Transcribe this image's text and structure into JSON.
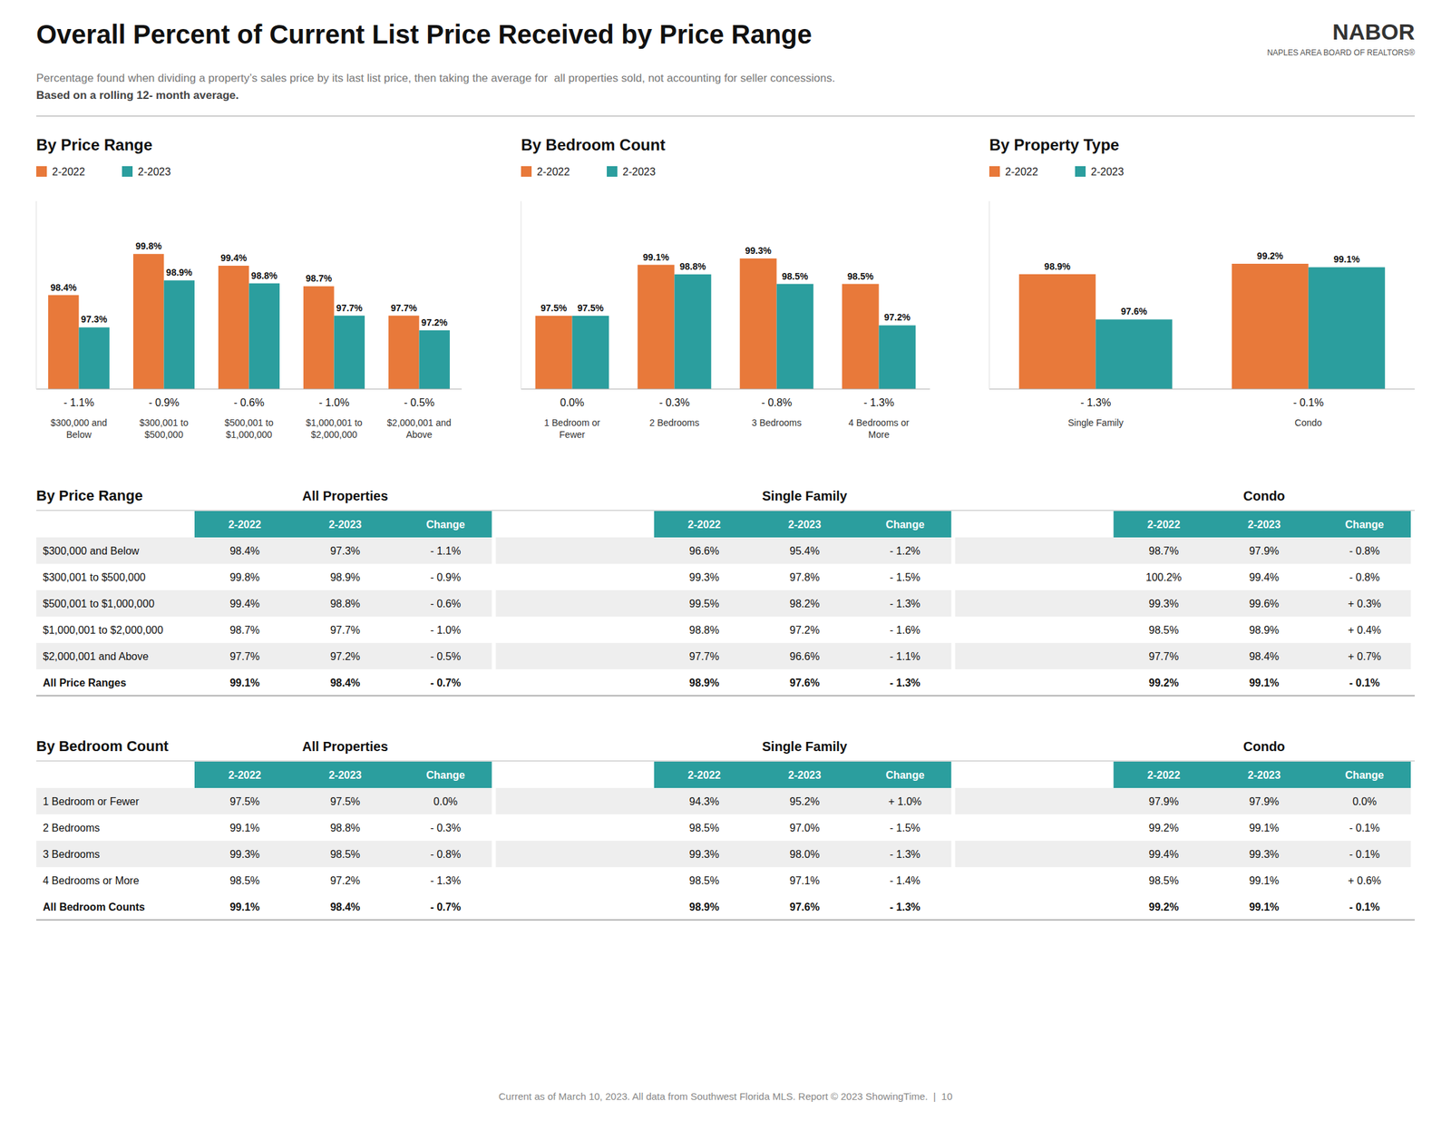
{
  "title": "Overall Percent of Current List Price Received by Price Range",
  "subtitle": [
    "Percentage found when dividing a property’s sales price by its last list price, then taking the average for  all properties sold, not accounting for seller concessions. ",
    "Based on a rolling 12- month average."
  ],
  "annotations": [
    "NABOR",
    "NAPLES AREA BOARD OF REALTORS®"
  ],
  "footer": "Current as of March 10, 2023. All data from Southwest Florida MLS. Report © 2023 ShowingTime.  |  10",
  "chart_data": [
    {
      "type": "bar",
      "title": "By Price Range",
      "categories": [
        "$300,000 and\nBelow",
        "$300,001 to\n$500,000",
        "$500,001 to\n$1,000,000",
        "$1,000,001 to\n$2,000,000",
        "$2,000,001 and\nAbove"
      ],
      "series": [
        {
          "name": "2-2022",
          "color": "#E8793A",
          "values": [
            98.4,
            99.8,
            99.4,
            98.7,
            97.7
          ],
          "value_labels": [
            "98.4%",
            "99.8%",
            "99.4%",
            "98.7%",
            "97.7%"
          ]
        },
        {
          "name": "2-2023",
          "color": "#2B9E9E",
          "values": [
            97.3,
            98.9,
            98.8,
            97.7,
            97.2
          ],
          "value_labels": [
            "97.3%",
            "98.9%",
            "98.8%",
            "97.7%",
            "97.2%"
          ]
        }
      ],
      "annotations": [
        "- 1.1%",
        "- 0.9%",
        "- 0.6%",
        "- 1.0%",
        "- 0.5%"
      ],
      "ylim": [
        95.2,
        101.6
      ],
      "data_labels": true,
      "tick_labels": "x",
      "grid": false,
      "legend": "top"
    },
    {
      "type": "bar",
      "title": "By Bedroom Count",
      "categories": [
        "1 Bedroom or\nFewer",
        "2 Bedrooms",
        "3 Bedrooms",
        "4 Bedrooms or\nMore"
      ],
      "series": [
        {
          "name": "2-2022",
          "color": "#E8793A",
          "values": [
            97.5,
            99.1,
            99.3,
            98.5
          ],
          "value_labels": [
            "97.5%",
            "99.1%",
            "99.3%",
            "98.5%"
          ]
        },
        {
          "name": "2-2023",
          "color": "#2B9E9E",
          "values": [
            97.5,
            98.8,
            98.5,
            97.2
          ],
          "value_labels": [
            "97.5%",
            "98.8%",
            "98.5%",
            "97.2%"
          ]
        }
      ],
      "annotations": [
        "0.0%",
        "- 0.3%",
        "- 0.8%",
        "- 1.3%"
      ],
      "ylim": [
        95.2,
        101.1
      ],
      "data_labels": true,
      "tick_labels": "x",
      "grid": false,
      "legend": "top"
    },
    {
      "type": "bar",
      "title": "By Property Type",
      "categories": [
        "Single Family",
        "Condo"
      ],
      "series": [
        {
          "name": "2-2022",
          "color": "#E8793A",
          "values": [
            98.9,
            99.2
          ],
          "value_labels": [
            "98.9%",
            "99.2%"
          ]
        },
        {
          "name": "2-2023",
          "color": "#2B9E9E",
          "values": [
            97.6,
            99.1
          ],
          "value_labels": [
            "97.6%",
            "99.1%"
          ]
        }
      ],
      "annotations": [
        "- 1.3%",
        "- 0.1%"
      ],
      "ylim": [
        95.6,
        101.0
      ],
      "data_labels": true,
      "tick_labels": "x",
      "grid": false,
      "legend": "top"
    },
    {
      "type": "table",
      "title": "By Price Range",
      "color": "#2B9E9E",
      "categories": [
        "$300,000 and Below",
        "$300,001 to $500,000",
        "$500,001 to $1,000,000",
        "$1,000,001 to $2,000,000",
        "$2,000,001 and Above",
        "All Price Ranges"
      ],
      "series": [
        {
          "name": "All Properties",
          "columns": [
            {
              "name": "2-2022",
              "labels": [
                "98.4%",
                "99.8%",
                "99.4%",
                "98.7%",
                "97.7%",
                "99.1%"
              ]
            },
            {
              "name": "2-2023",
              "labels": [
                "97.3%",
                "98.9%",
                "98.8%",
                "97.7%",
                "97.2%",
                "98.4%"
              ]
            },
            {
              "name": "Change",
              "labels": [
                "- 1.1%",
                "- 0.9%",
                "- 0.6%",
                "- 1.0%",
                "- 0.5%",
                "- 0.7%"
              ]
            }
          ]
        },
        {
          "name": "Single Family",
          "columns": [
            {
              "name": "2-2022",
              "labels": [
                "96.6%",
                "99.3%",
                "99.5%",
                "98.8%",
                "97.7%",
                "98.9%"
              ]
            },
            {
              "name": "2-2023",
              "labels": [
                "95.4%",
                "97.8%",
                "98.2%",
                "97.2%",
                "96.6%",
                "97.6%"
              ]
            },
            {
              "name": "Change",
              "labels": [
                "- 1.2%",
                "- 1.5%",
                "- 1.3%",
                "- 1.6%",
                "- 1.1%",
                "- 1.3%"
              ]
            }
          ]
        },
        {
          "name": "Condo",
          "columns": [
            {
              "name": "2-2022",
              "labels": [
                "98.7%",
                "100.2%",
                "99.3%",
                "98.5%",
                "97.7%",
                "99.2%"
              ]
            },
            {
              "name": "2-2023",
              "labels": [
                "97.9%",
                "99.4%",
                "99.6%",
                "98.9%",
                "98.4%",
                "99.1%"
              ]
            },
            {
              "name": "Change",
              "labels": [
                "- 0.8%",
                "- 0.8%",
                "+ 0.3%",
                "+ 0.4%",
                "+ 0.7%",
                "- 0.1%"
              ]
            }
          ]
        }
      ]
    },
    {
      "type": "table",
      "title": "By Bedroom Count",
      "color": "#2B9E9E",
      "categories": [
        "1 Bedroom or Fewer",
        "2 Bedrooms",
        "3 Bedrooms",
        "4 Bedrooms or More",
        "All Bedroom Counts"
      ],
      "series": [
        {
          "name": "All Properties",
          "columns": [
            {
              "name": "2-2022",
              "labels": [
                "97.5%",
                "99.1%",
                "99.3%",
                "98.5%",
                "99.1%"
              ]
            },
            {
              "name": "2-2023",
              "labels": [
                "97.5%",
                "98.8%",
                "98.5%",
                "97.2%",
                "98.4%"
              ]
            },
            {
              "name": "Change",
              "labels": [
                "0.0%",
                "- 0.3%",
                "- 0.8%",
                "- 1.3%",
                "- 0.7%"
              ]
            }
          ]
        },
        {
          "name": "Single Family",
          "columns": [
            {
              "name": "2-2022",
              "labels": [
                "94.3%",
                "98.5%",
                "99.3%",
                "98.5%",
                "98.9%"
              ]
            },
            {
              "name": "2-2023",
              "labels": [
                "95.2%",
                "97.0%",
                "98.0%",
                "97.1%",
                "97.6%"
              ]
            },
            {
              "name": "Change",
              "labels": [
                "+ 1.0%",
                "- 1.5%",
                "- 1.3%",
                "- 1.4%",
                "- 1.3%"
              ]
            }
          ]
        },
        {
          "name": "Condo",
          "columns": [
            {
              "name": "2-2022",
              "labels": [
                "97.9%",
                "99.2%",
                "99.4%",
                "98.5%",
                "99.2%"
              ]
            },
            {
              "name": "2-2023",
              "labels": [
                "97.9%",
                "99.1%",
                "99.3%",
                "99.1%",
                "99.1%"
              ]
            },
            {
              "name": "Change",
              "labels": [
                "0.0%",
                "- 0.1%",
                "- 0.1%",
                "+ 0.6%",
                "- 0.1%"
              ]
            }
          ]
        }
      ]
    }
  ]
}
